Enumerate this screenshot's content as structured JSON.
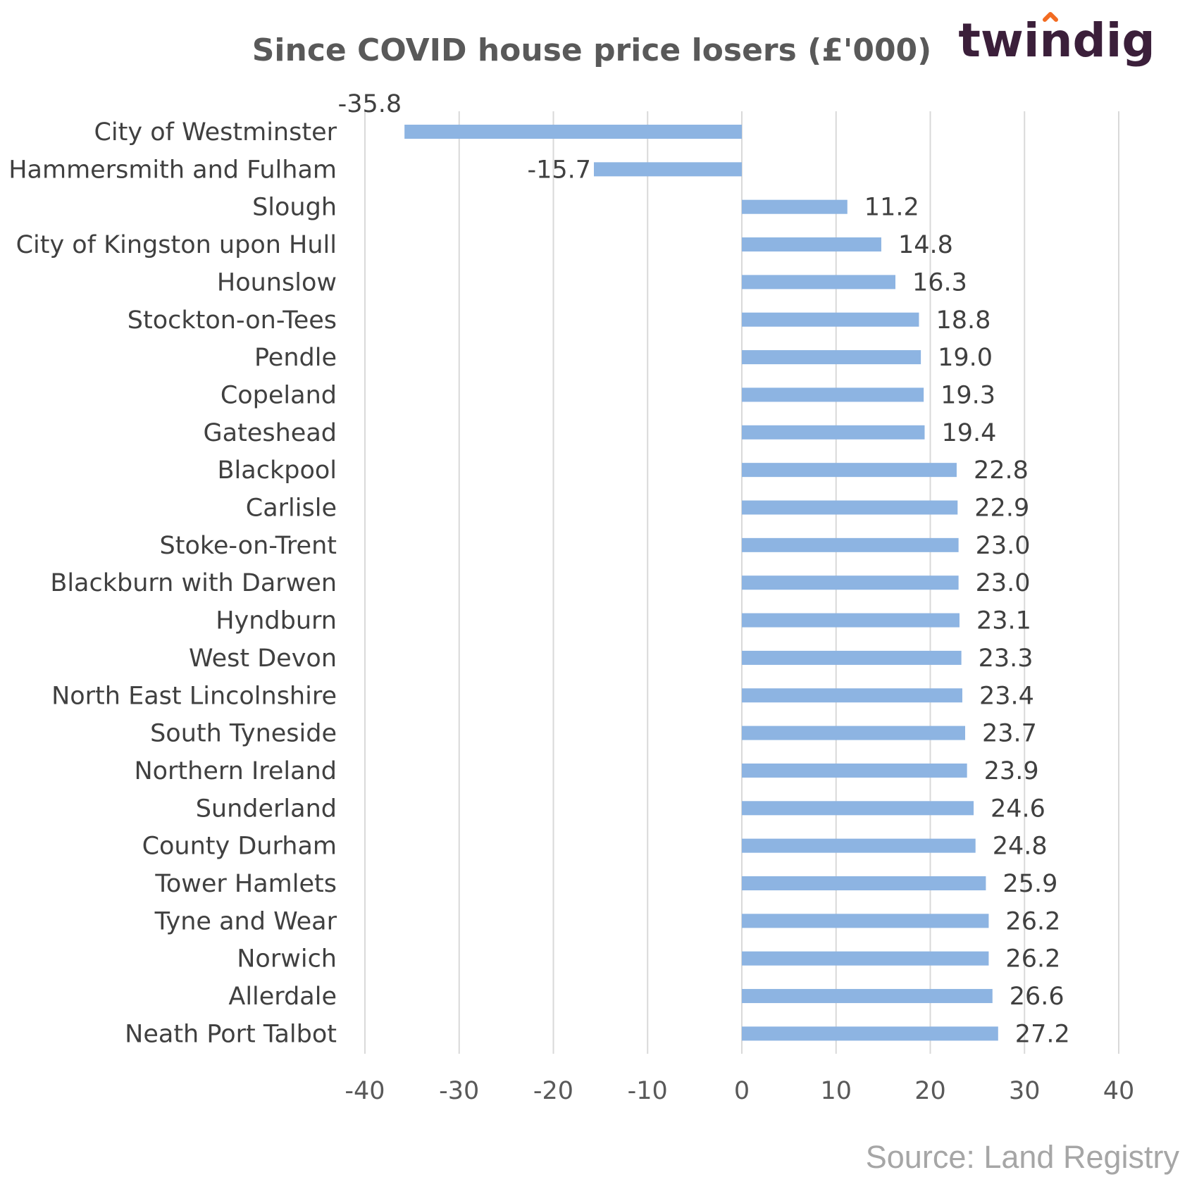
{
  "brand": {
    "logo_text": "twindig",
    "logo_text_color": "#3b1f3a",
    "logo_accent_color": "#f26b21"
  },
  "source_text": "Source: Land Registry",
  "colors": {
    "bar": "#8db4e2",
    "grid": "#d9d9d9",
    "text": "#404040"
  },
  "chart_data": {
    "type": "bar",
    "orientation": "horizontal",
    "title": "Since COVID house price losers (£'000)",
    "xlabel": "",
    "ylabel": "",
    "xlim": [
      -40,
      40
    ],
    "xticks": [
      -40,
      -30,
      -20,
      -10,
      0,
      10,
      20,
      30,
      40
    ],
    "grid": "vertical",
    "legend": "none",
    "categories": [
      "City of Westminster",
      "Hammersmith and Fulham",
      "Slough",
      "City of Kingston upon Hull",
      "Hounslow",
      "Stockton-on-Tees",
      "Pendle",
      "Copeland",
      "Gateshead",
      "Blackpool",
      "Carlisle",
      "Stoke-on-Trent",
      "Blackburn with Darwen",
      "Hyndburn",
      "West Devon",
      "North East Lincolnshire",
      "South Tyneside",
      "Northern Ireland",
      "Sunderland",
      "County Durham",
      "Tower Hamlets",
      "Tyne and Wear",
      "Norwich",
      "Allerdale",
      "Neath Port Talbot"
    ],
    "values": [
      -35.8,
      -15.7,
      11.2,
      14.8,
      16.3,
      18.8,
      19.0,
      19.3,
      19.4,
      22.8,
      22.9,
      23.0,
      23.0,
      23.1,
      23.3,
      23.4,
      23.7,
      23.9,
      24.6,
      24.8,
      25.9,
      26.2,
      26.2,
      26.6,
      27.2
    ],
    "value_labels": [
      "-35.8",
      "-15.7",
      "11.2",
      "14.8",
      "16.3",
      "18.8",
      "19.0",
      "19.3",
      "19.4",
      "22.8",
      "22.9",
      "23.0",
      "23.0",
      "23.1",
      "23.3",
      "23.4",
      "23.7",
      "23.9",
      "24.6",
      "24.8",
      "25.9",
      "26.2",
      "26.2",
      "26.6",
      "27.2"
    ]
  }
}
